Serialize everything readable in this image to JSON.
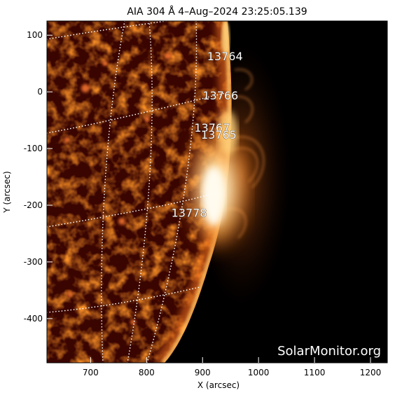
{
  "title": "AIA 304 Å  4–Aug–2024 23:25:05.139",
  "watermark": "SolarMonitor.org",
  "axes": {
    "xlabel": "X (arcsec)",
    "ylabel": "Y (arcsec)",
    "xlim": [
      622,
      1230
    ],
    "ylim": [
      -478,
      125
    ],
    "xticks": [
      700,
      800,
      900,
      1000,
      1100,
      1200
    ],
    "yticks": [
      100,
      0,
      -100,
      -200,
      -300,
      -400
    ]
  },
  "regions": [
    {
      "id": "13764",
      "x": 940,
      "y": 63
    },
    {
      "id": "13766",
      "x": 932,
      "y": -6
    },
    {
      "id": "13767",
      "x": 917,
      "y": -63
    },
    {
      "id": "13765",
      "x": 929,
      "y": -75
    },
    {
      "id": "13778",
      "x": 876,
      "y": -213
    }
  ],
  "colors": {
    "background": "#000000",
    "disk_dark": "#3a0500",
    "disk_mid": "#8a1800",
    "limb_bright": "#ffd070",
    "flare_core": "#fff8e6",
    "grid": "#ffffff",
    "label": "#ffffff"
  }
}
